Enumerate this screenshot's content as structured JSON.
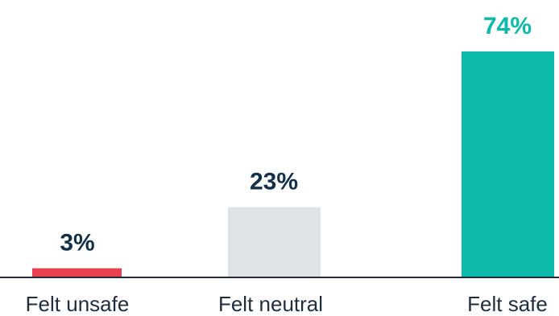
{
  "chart_data": {
    "type": "bar",
    "title": "",
    "xlabel": "",
    "ylabel": "",
    "categories": [
      "Felt unsafe",
      "Felt neutral",
      "Felt safe"
    ],
    "values": [
      3,
      23,
      74
    ],
    "value_labels": [
      "3%",
      "23%",
      "74%"
    ],
    "ylim": [
      0,
      74
    ],
    "grid": false,
    "colors": {
      "bars": [
        "#e8404e",
        "#dfe3e6",
        "#0bbaaa"
      ],
      "value_labels": [
        "#13304a",
        "#13304a",
        "#0bbaaa"
      ],
      "axis": "#1f2d3d"
    }
  }
}
